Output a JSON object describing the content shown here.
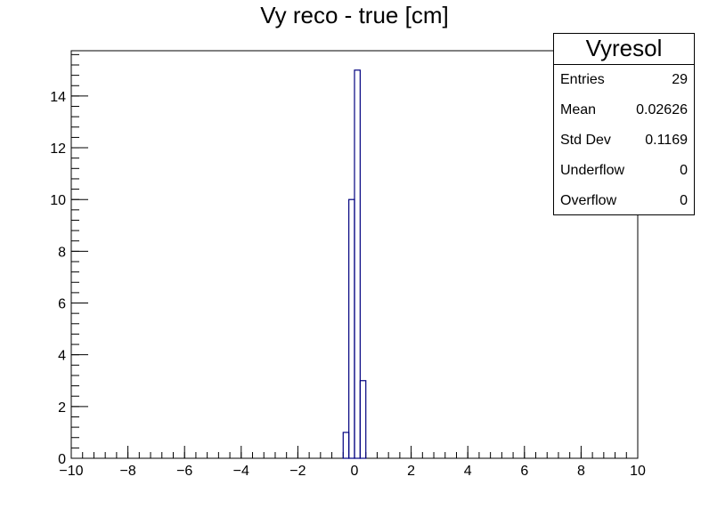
{
  "chart_data": {
    "type": "histogram",
    "title": "Vy reco - true [cm]",
    "xlim": [
      -10,
      10
    ],
    "ylim": [
      0,
      15.75
    ],
    "x_ticks": [
      -10,
      -8,
      -6,
      -4,
      -2,
      0,
      2,
      4,
      6,
      8,
      10
    ],
    "x_tick_labels": [
      "−10",
      "−8",
      "−6",
      "−4",
      "−2",
      "0",
      "2",
      "4",
      "6",
      "8",
      "10"
    ],
    "y_ticks": [
      0,
      2,
      4,
      6,
      8,
      10,
      12,
      14
    ],
    "y_tick_labels": [
      "0",
      "2",
      "4",
      "6",
      "8",
      "10",
      "12",
      "14"
    ],
    "bin_width": 0.2,
    "bins": [
      {
        "x_low": -0.4,
        "x_high": -0.2,
        "count": 1
      },
      {
        "x_low": -0.2,
        "x_high": 0.0,
        "count": 10
      },
      {
        "x_low": 0.0,
        "x_high": 0.2,
        "count": 15
      },
      {
        "x_low": 0.2,
        "x_high": 0.4,
        "count": 3
      }
    ],
    "line_color": "#000080",
    "grid": false,
    "legend": "none"
  },
  "stats_box": {
    "title": "Vyresol",
    "rows": [
      {
        "label": "Entries",
        "value": "29"
      },
      {
        "label": "Mean",
        "value": "0.02626"
      },
      {
        "label": "Std Dev",
        "value": "0.1169"
      },
      {
        "label": "Underflow",
        "value": "0"
      },
      {
        "label": "Overflow",
        "value": "0"
      }
    ]
  }
}
